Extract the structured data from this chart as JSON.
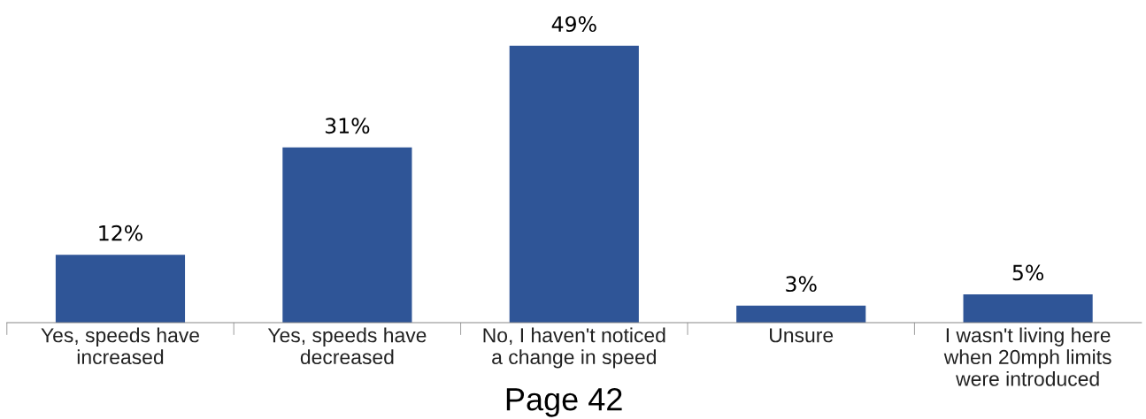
{
  "chart_data": {
    "type": "bar",
    "categories": [
      "Yes, speeds have\nincreased",
      "Yes, speeds have\ndecreased",
      "No, I haven't noticed\na change in speed",
      "Unsure",
      "I wasn't living here\nwhen 20mph limits\nwere introduced"
    ],
    "values": [
      12,
      31,
      49,
      3,
      5
    ],
    "value_labels": [
      "12%",
      "31%",
      "49%",
      "3%",
      "5%"
    ],
    "color": "#2f5597",
    "grid": false,
    "legend": false,
    "annotations": [
      "Page 42"
    ]
  }
}
